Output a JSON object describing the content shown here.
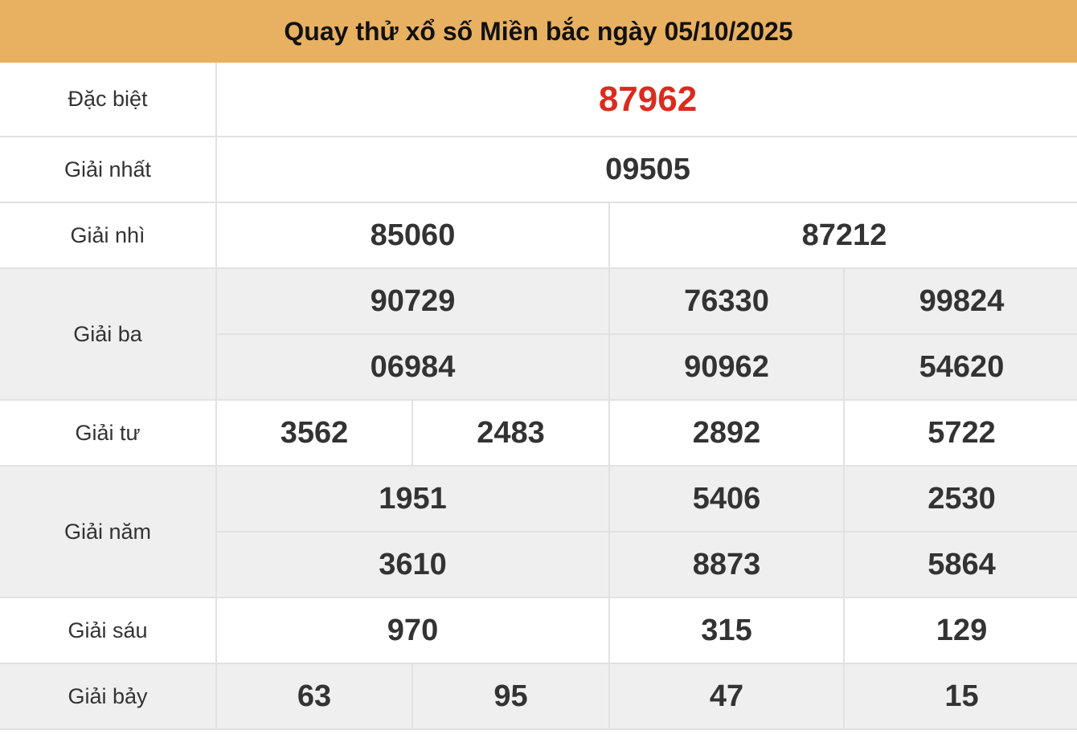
{
  "title": "Quay thử xổ số Miền bắc ngày 05/10/2025",
  "colors": {
    "header_bg": "#e8b061",
    "special": "#db2b1f",
    "alt_row": "#efefef"
  },
  "prizes": {
    "dac_biet": {
      "label": "Đặc biệt",
      "numbers": [
        "87962"
      ]
    },
    "nhat": {
      "label": "Giải nhất",
      "numbers": [
        "09505"
      ]
    },
    "nhi": {
      "label": "Giải nhì",
      "numbers": [
        "85060",
        "87212"
      ]
    },
    "ba": {
      "label": "Giải ba",
      "numbers": [
        "90729",
        "76330",
        "99824",
        "06984",
        "90962",
        "54620"
      ]
    },
    "tu": {
      "label": "Giải tư",
      "numbers": [
        "3562",
        "2483",
        "2892",
        "5722"
      ]
    },
    "nam": {
      "label": "Giải năm",
      "numbers": [
        "1951",
        "5406",
        "2530",
        "3610",
        "8873",
        "5864"
      ]
    },
    "sau": {
      "label": "Giải sáu",
      "numbers": [
        "970",
        "315",
        "129"
      ]
    },
    "bay": {
      "label": "Giải bảy",
      "numbers": [
        "63",
        "95",
        "47",
        "15"
      ]
    }
  }
}
